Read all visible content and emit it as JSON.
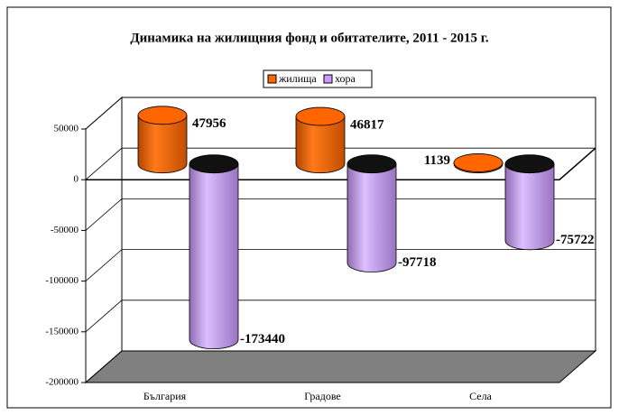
{
  "chart_data": {
    "type": "bar3d",
    "title": "Динамика на жилищния фонд и обитателите, 2011 - 2015 г.",
    "categories": [
      "България",
      "Градове",
      "Села"
    ],
    "series": [
      {
        "name": "жилища",
        "color": "#ff6600",
        "values": [
          47956,
          46817,
          1139
        ]
      },
      {
        "name": "хора",
        "color": "#cc99ff",
        "values": [
          -173440,
          -97718,
          -75722
        ]
      }
    ],
    "ylim": [
      -200000,
      50000
    ],
    "yticks": [
      -200000,
      -150000,
      -100000,
      -50000,
      0,
      50000
    ],
    "grid": true,
    "legend": "top"
  }
}
